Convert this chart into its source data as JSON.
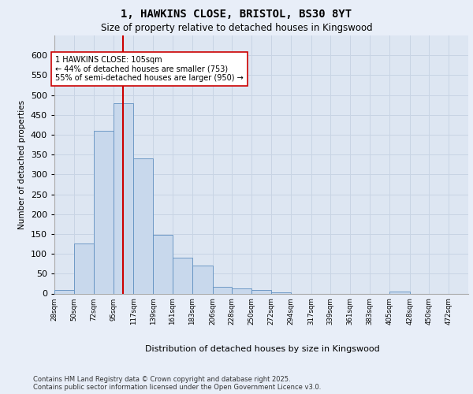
{
  "title_line1": "1, HAWKINS CLOSE, BRISTOL, BS30 8YT",
  "title_line2": "Size of property relative to detached houses in Kingswood",
  "xlabel": "Distribution of detached houses by size in Kingswood",
  "ylabel": "Number of detached properties",
  "footer": "Contains HM Land Registry data © Crown copyright and database right 2025.\nContains public sector information licensed under the Open Government Licence v3.0.",
  "bar_heights": [
    8,
    127,
    410,
    480,
    340,
    148,
    90,
    70,
    17,
    13,
    8,
    3,
    0,
    0,
    0,
    0,
    0,
    4,
    0,
    0
  ],
  "bin_edges": [
    28,
    50,
    72,
    95,
    117,
    139,
    161,
    183,
    206,
    228,
    250,
    272,
    294,
    317,
    339,
    361,
    383,
    405,
    428,
    450,
    472
  ],
  "xtick_labels": [
    "28sqm",
    "50sqm",
    "72sqm",
    "95sqm",
    "117sqm",
    "139sqm",
    "161sqm",
    "183sqm",
    "206sqm",
    "228sqm",
    "250sqm",
    "272sqm",
    "294sqm",
    "317sqm",
    "339sqm",
    "361sqm",
    "383sqm",
    "405sqm",
    "428sqm",
    "450sqm",
    "472sqm"
  ],
  "bar_color": "#c8d8ec",
  "bar_edge_color": "#6090c0",
  "grid_color": "#c8d4e4",
  "background_color": "#dde6f2",
  "fig_background": "#e8eef8",
  "vline_x": 105,
  "vline_color": "#cc0000",
  "annotation_text": "1 HAWKINS CLOSE: 105sqm\n← 44% of detached houses are smaller (753)\n55% of semi-detached houses are larger (950) →",
  "annotation_box_facecolor": "#ffffff",
  "annotation_border_color": "#cc0000",
  "ylim_max": 650,
  "yticks": [
    0,
    50,
    100,
    150,
    200,
    250,
    300,
    350,
    400,
    450,
    500,
    550,
    600
  ]
}
